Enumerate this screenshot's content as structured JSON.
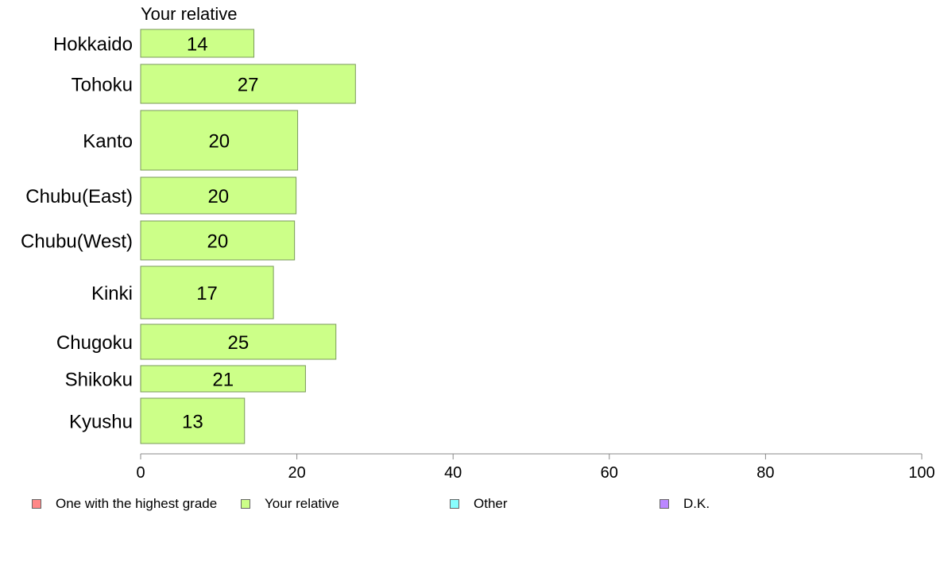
{
  "chart_data": {
    "type": "bar",
    "orientation": "horizontal",
    "title": "Your relative",
    "categories": [
      "Hokkaido",
      "Tohoku",
      "Kanto",
      "Chubu(East)",
      "Chubu(West)",
      "Kinki",
      "Chugoku",
      "Shikoku",
      "Kyushu"
    ],
    "series": [
      {
        "name": "Your relative",
        "values": [
          14.5,
          27.5,
          20.1,
          19.9,
          19.7,
          17.0,
          25.0,
          21.1,
          13.3
        ],
        "labels": [
          "14",
          "27",
          "20",
          "20",
          "20",
          "17",
          "25",
          "21",
          "13"
        ],
        "color": "#ccff88"
      }
    ],
    "xlim": [
      0,
      100
    ],
    "xticks": [
      0,
      20,
      40,
      60,
      80,
      100
    ],
    "xlabel": "",
    "ylabel": "",
    "grid": false,
    "legend_placement": "bottom",
    "legend": [
      {
        "label": "One with the highest grade",
        "color": "#ff8888"
      },
      {
        "label": "Your relative",
        "color": "#ccff88"
      },
      {
        "label": "Other",
        "color": "#88ffff"
      },
      {
        "label": "D.K.",
        "color": "#bb88ff"
      }
    ]
  }
}
